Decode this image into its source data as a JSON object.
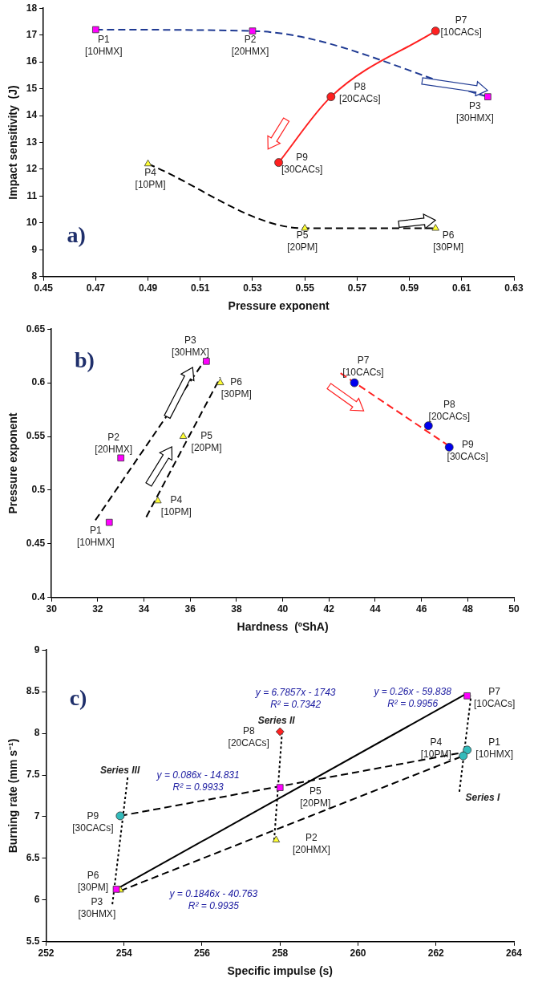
{
  "chart_data": [
    {
      "type": "scatter",
      "xlabel": "Pressure exponent",
      "ylabel": "Impact sensitivity  (J)",
      "xlim": [
        0.45,
        0.63
      ],
      "xticks": [
        0.45,
        0.47,
        0.49,
        0.51,
        0.53,
        0.55,
        0.57,
        0.59,
        0.61,
        0.63
      ],
      "ylim": [
        8,
        18
      ],
      "yticks": [
        8,
        9,
        10,
        11,
        12,
        13,
        14,
        15,
        16,
        17,
        18
      ],
      "grid": false,
      "legend": false,
      "series": [
        {
          "type": "line",
          "color": "#1f3a93",
          "line_style": "dashed",
          "marker": "none",
          "x": [
            0.47,
            0.53,
            0.62
          ],
          "values": [
            17.2,
            17.15,
            14.7
          ]
        },
        {
          "type": "line",
          "color": "#000000",
          "line_style": "dashed",
          "marker": "none",
          "x": [
            0.49,
            0.55,
            0.6
          ],
          "values": [
            12.2,
            9.8,
            9.8
          ]
        },
        {
          "type": "line",
          "color": "#ff2020",
          "line_style": "solid",
          "marker": "none",
          "x": [
            0.54,
            0.56,
            0.6
          ],
          "values": [
            12.25,
            14.7,
            17.15
          ]
        },
        {
          "type": "scatter",
          "color": "#ff00ff",
          "marker": "square",
          "x": [
            0.47,
            0.53,
            0.62
          ],
          "values": [
            17.2,
            17.15,
            14.7
          ]
        },
        {
          "type": "scatter",
          "color": "#ffff33",
          "marker": "triangle",
          "x": [
            0.49,
            0.55,
            0.6
          ],
          "values": [
            12.2,
            9.8,
            9.8
          ]
        },
        {
          "type": "scatter",
          "color": "#ff2020",
          "marker": "circle",
          "x": [
            0.54,
            0.56,
            0.6
          ],
          "values": [
            12.25,
            14.7,
            17.15
          ]
        }
      ],
      "annotations": [
        "a)",
        {
          "text": "P1\n[10HMX]",
          "x": 0.47,
          "y": 17.2
        },
        {
          "text": "P2\n[20HMX]",
          "x": 0.53,
          "y": 17.15
        },
        {
          "text": "P3\n[30HMX]",
          "x": 0.62,
          "y": 14.7
        },
        {
          "text": "P4\n[10PM]",
          "x": 0.49,
          "y": 12.2
        },
        {
          "text": "P5\n[20PM]",
          "x": 0.55,
          "y": 9.8
        },
        {
          "text": "P6\n[30PM]",
          "x": 0.6,
          "y": 9.8
        },
        {
          "text": "P7\n[10CACs]",
          "x": 0.6,
          "y": 17.15
        },
        {
          "text": "P8\n[20CACs]",
          "x": 0.56,
          "y": 14.7
        },
        {
          "text": "P9\n[30CACs]",
          "x": 0.54,
          "y": 12.25
        }
      ]
    },
    {
      "type": "scatter",
      "xlabel": "Hardness  (ºShA)",
      "ylabel": "Pressure exponent",
      "xlim": [
        30,
        50
      ],
      "xticks": [
        30,
        32,
        34,
        36,
        38,
        40,
        42,
        44,
        46,
        48,
        50
      ],
      "ylim": [
        0.4,
        0.65
      ],
      "yticks": [
        0.4,
        0.45,
        0.5,
        0.55,
        0.6,
        0.65
      ],
      "grid": false,
      "legend": false,
      "series": [
        {
          "type": "line",
          "color": "#000000",
          "line_style": "dashed",
          "marker": "none",
          "x": [
            31.9,
            36.6
          ],
          "values": [
            0.472,
            0.62
          ]
        },
        {
          "type": "line",
          "color": "#000000",
          "line_style": "dashed",
          "marker": "none",
          "x": [
            34.1,
            37.3
          ],
          "values": [
            0.475,
            0.605
          ]
        },
        {
          "type": "line",
          "color": "#ff2020",
          "line_style": "dashed",
          "marker": "none",
          "x": [
            42.5,
            47.2
          ],
          "values": [
            0.609,
            0.541
          ]
        },
        {
          "type": "scatter",
          "color": "#ff00ff",
          "marker": "square",
          "x": [
            32.5,
            33,
            36.7
          ],
          "values": [
            0.47,
            0.53,
            0.62
          ]
        },
        {
          "type": "scatter",
          "color": "#ffff33",
          "marker": "triangle",
          "x": [
            34.6,
            35.7,
            37.3
          ],
          "values": [
            0.49,
            0.55,
            0.6
          ]
        },
        {
          "type": "scatter",
          "color": "#0000ee",
          "marker": "circle",
          "x": [
            43.1,
            46.3,
            47.2
          ],
          "values": [
            0.6,
            0.56,
            0.54
          ]
        }
      ],
      "annotations": [
        "b)",
        {
          "text": "P1\n[10HMX]",
          "x": 32.5,
          "y": 0.47
        },
        {
          "text": "P2\n[20HMX]",
          "x": 33,
          "y": 0.53
        },
        {
          "text": "P3\n[30HMX]",
          "x": 36.7,
          "y": 0.62
        },
        {
          "text": "P4\n[10PM]",
          "x": 34.6,
          "y": 0.49
        },
        {
          "text": "P5\n[20PM]",
          "x": 35.7,
          "y": 0.55
        },
        {
          "text": "P6\n[30PM]",
          "x": 37.3,
          "y": 0.6
        },
        {
          "text": "P7\n[10CACs]",
          "x": 43.1,
          "y": 0.6
        },
        {
          "text": "P8\n[20CACs]",
          "x": 46.3,
          "y": 0.56
        },
        {
          "text": "P9\n[30CACs]",
          "x": 47.2,
          "y": 0.54
        }
      ]
    },
    {
      "type": "scatter",
      "xlabel": "Specific impulse (s)",
      "ylabel": "Burning rate (mm s⁻¹)",
      "xlim": [
        252,
        264
      ],
      "xticks": [
        252,
        254,
        256,
        258,
        260,
        262,
        264
      ],
      "ylim": [
        5.5,
        9
      ],
      "yticks": [
        5.5,
        6,
        6.5,
        7,
        7.5,
        8,
        8.5,
        9
      ],
      "grid": false,
      "legend": false,
      "series": [
        {
          "type": "line",
          "color": "#000000",
          "line_style": "solid",
          "marker": "none",
          "x": [
            253.8,
            262.8
          ],
          "values": [
            6.13,
            8.48
          ]
        },
        {
          "type": "line",
          "color": "#000000",
          "line_style": "dashed",
          "marker": "none",
          "x": [
            253.9,
            262.8
          ],
          "values": [
            7.01,
            7.78
          ]
        },
        {
          "type": "line",
          "color": "#000000",
          "line_style": "dashed",
          "marker": "none",
          "x": [
            253.9,
            262.7
          ],
          "values": [
            6.11,
            7.73
          ]
        },
        {
          "type": "line",
          "color": "#000000",
          "line_style": "dotted",
          "marker": "none",
          "x": [
            253.7,
            254.1
          ],
          "values": [
            5.95,
            7.5
          ]
        },
        {
          "type": "line",
          "color": "#000000",
          "line_style": "dotted",
          "marker": "none",
          "x": [
            257.85,
            258.05
          ],
          "values": [
            6.72,
            8
          ]
        },
        {
          "type": "line",
          "color": "#000000",
          "line_style": "dotted",
          "marker": "none",
          "x": [
            262.6,
            262.9
          ],
          "values": [
            7.3,
            8.45
          ]
        },
        {
          "type": "scatter",
          "color": "#ff00ff",
          "marker": "square",
          "x": [
            262.8,
            258,
            253.8
          ],
          "values": [
            8.45,
            7.35,
            6.13
          ]
        },
        {
          "type": "scatter",
          "color": "#33bbbb",
          "marker": "circle",
          "x": [
            262.8,
            262.7,
            253.9
          ],
          "values": [
            7.8,
            7.73,
            7.01
          ]
        },
        {
          "type": "scatter",
          "color": "#ffff33",
          "marker": "triangle",
          "x": [
            257.9,
            253.9
          ],
          "values": [
            6.72,
            6.12
          ]
        },
        {
          "type": "scatter",
          "color": "#ff2020",
          "marker": "diamond",
          "x": [
            258
          ],
          "values": [
            8.02
          ]
        }
      ],
      "annotations": [
        "c)",
        {
          "text": "P1\n[10HMX]",
          "x": 262.8,
          "y": 7.8
        },
        {
          "text": "P2\n[20HMX]",
          "x": 257.9,
          "y": 6.72
        },
        {
          "text": "P3\n[30HMX]",
          "x": 253.9,
          "y": 6.12
        },
        {
          "text": "P4\n[10PM]",
          "x": 262.7,
          "y": 7.73
        },
        {
          "text": "P5\n[20PM]",
          "x": 258,
          "y": 7.35
        },
        {
          "text": "P6\n[30PM]",
          "x": 253.8,
          "y": 6.13
        },
        {
          "text": "P7\n[10CACs]",
          "x": 262.8,
          "y": 8.45
        },
        {
          "text": "P8\n[20CACs]",
          "x": 258,
          "y": 8.02
        },
        {
          "text": "P9\n[30CACs]",
          "x": 253.9,
          "y": 7.01
        },
        {
          "text": "y = 6.7857x - 1743\nR² = 0.7342",
          "x": 258.05,
          "y": 8
        },
        {
          "text": "y = 0.26x - 59.838\nR² = 0.9956",
          "x": 262.8,
          "y": 8.48
        },
        "y = 0.086x - 14.831\nR² = 0.9933",
        "y = 0.1846x - 40.763\nR² = 0.9935",
        {
          "text": "Series I",
          "x": 262.6,
          "y": 7.3
        },
        {
          "text": "Series II",
          "x": 258.05,
          "y": 8
        },
        {
          "text": "Series III",
          "x": 254.1,
          "y": 7.5
        }
      ]
    }
  ]
}
